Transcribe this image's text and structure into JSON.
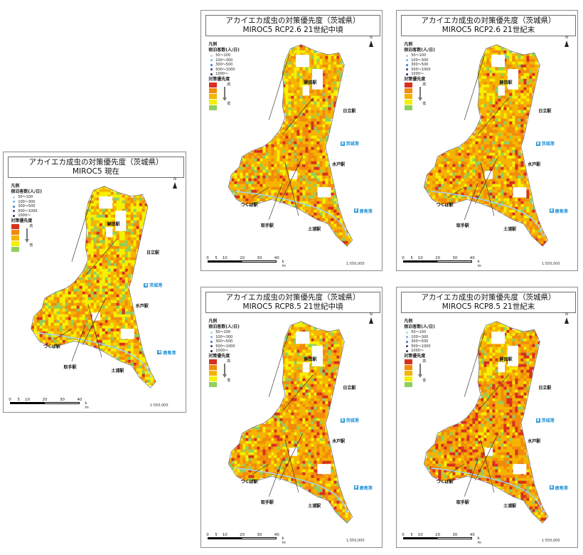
{
  "colors": {
    "priority": [
      "#d7301f",
      "#f28b0c",
      "#f5b400",
      "#f5f000",
      "#8fcf5f"
    ],
    "capacity_dots": [
      "#a8d6f0",
      "#6bb5e6",
      "#3c78c8",
      "#3b3b8f",
      "#2a2a6a"
    ],
    "river": "#9fd4f5",
    "port_blue": "#1e90d6"
  },
  "panels": [
    {
      "id": "current",
      "title_line1": "アカイエカ成虫の対策優先度（茨城県）",
      "title_line2": "MIROC5 現在",
      "priority_weights": [
        0.05,
        0.22,
        0.28,
        0.35,
        0.1
      ]
    },
    {
      "id": "rcp26-mid",
      "title_line1": "アカイエカ成虫の対策優先度（茨城県）",
      "title_line2": "MIROC5 RCP2.6 21世紀中頃",
      "priority_weights": [
        0.09,
        0.28,
        0.4,
        0.16,
        0.07
      ]
    },
    {
      "id": "rcp26-end",
      "title_line1": "アカイエカ成虫の対策優先度（茨城県）",
      "title_line2": "MIROC5 RCP2.6 21世紀末",
      "priority_weights": [
        0.09,
        0.29,
        0.4,
        0.15,
        0.07
      ]
    },
    {
      "id": "rcp85-mid",
      "title_line1": "アカイエカ成虫の対策優先度（茨城県）",
      "title_line2": "MIROC5 RCP8.5 21世紀中頃",
      "priority_weights": [
        0.12,
        0.3,
        0.38,
        0.13,
        0.07
      ]
    },
    {
      "id": "rcp85-end",
      "title_line1": "アカイエカ成虫の対策優先度（茨城県）",
      "title_line2": "MIROC5 RCP8.5 21世紀末",
      "priority_weights": [
        0.16,
        0.3,
        0.4,
        0.08,
        0.06
      ]
    }
  ],
  "legend": {
    "heading": "凡例",
    "capacity_title": "宿泊客数(人/日)",
    "capacity_classes": [
      "50～100",
      "100～300",
      "300～500",
      "500～1000",
      "1000～"
    ],
    "priority_title": "対策優先度",
    "high_label": "高",
    "low_label": "低"
  },
  "stations": {
    "kamaya": "鉾田駅",
    "hitachi": "日立駅",
    "mito": "水戸駅",
    "tsukuba": "つくば駅",
    "toride": "取手駅",
    "tsuchiura": "土浦駅"
  },
  "ports": {
    "ibaraki": "茨城港",
    "kashima": "鹿島港",
    "icon_text": "港"
  },
  "north_label": "N",
  "scale": {
    "ticks": [
      "0",
      "5",
      "10",
      "20",
      "30",
      "40"
    ],
    "unit": "k m",
    "ratio": "1:550,000"
  }
}
